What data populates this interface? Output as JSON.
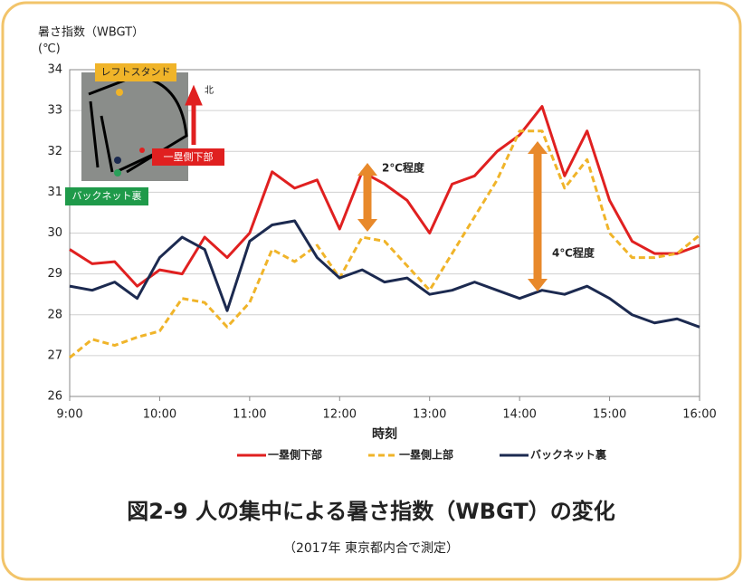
{
  "chart_data": {
    "type": "line",
    "y_label": "暑さ指数（WBGT）",
    "y_unit": "(℃)",
    "x_label": "時刻",
    "title": "図2-9  人の集中による暑さ指数（WBGT）の変化",
    "subtitle": "（2017年 東京都内合で測定）",
    "x": [
      9,
      9.25,
      9.5,
      9.75,
      10,
      10.25,
      10.5,
      10.75,
      11,
      11.25,
      11.5,
      11.75,
      12,
      12.25,
      12.5,
      12.75,
      13,
      13.25,
      13.5,
      13.75,
      14,
      14.25,
      14.5,
      14.75,
      15,
      15.25,
      15.5,
      15.75,
      16
    ],
    "xlim": [
      9,
      16
    ],
    "xticks": [
      {
        "value": 9,
        "label": "9:00"
      },
      {
        "value": 10,
        "label": "10:00"
      },
      {
        "value": 11,
        "label": "11:00"
      },
      {
        "value": 12,
        "label": "12:00"
      },
      {
        "value": 13,
        "label": "13:00"
      },
      {
        "value": 14,
        "label": "14:00"
      },
      {
        "value": 15,
        "label": "15:00"
      },
      {
        "value": 16,
        "label": "16:00"
      }
    ],
    "ylim": [
      26,
      34
    ],
    "yticks": [
      26,
      27,
      28,
      29,
      30,
      31,
      32,
      33,
      34
    ],
    "grid": true,
    "series": [
      {
        "name": "一塁側下部",
        "color": "#e02020",
        "dash": false,
        "values": [
          29.6,
          29.25,
          29.3,
          28.7,
          29.1,
          29.0,
          29.9,
          29.4,
          30.0,
          31.5,
          31.1,
          31.3,
          30.1,
          31.5,
          31.2,
          30.8,
          30.0,
          31.2,
          31.4,
          32.0,
          32.4,
          33.1,
          31.4,
          32.5,
          30.8,
          29.8,
          29.5,
          29.5,
          29.7
        ]
      },
      {
        "name": "一塁側上部",
        "color": "#f0b429",
        "dash": true,
        "values": [
          26.95,
          27.4,
          27.25,
          27.45,
          27.6,
          28.4,
          28.3,
          27.7,
          28.3,
          29.6,
          29.3,
          29.7,
          28.9,
          29.9,
          29.8,
          29.2,
          28.6,
          29.5,
          30.4,
          31.3,
          32.5,
          32.5,
          31.1,
          31.8,
          30.0,
          29.4,
          29.4,
          29.5,
          29.95
        ]
      },
      {
        "name": "バックネット裏",
        "color": "#1c2a50",
        "dash": false,
        "values": [
          28.7,
          28.6,
          28.8,
          28.4,
          29.4,
          29.9,
          29.6,
          28.1,
          29.8,
          30.2,
          30.3,
          29.4,
          28.9,
          29.1,
          28.8,
          28.9,
          28.5,
          28.6,
          28.8,
          28.6,
          28.4,
          28.6,
          28.5,
          28.7,
          28.4,
          28.0,
          27.8,
          27.9,
          27.7
        ]
      }
    ],
    "annotations": [
      "2℃程度",
      "4℃程度"
    ],
    "map_labels": [
      "レフトスタンド",
      "一塁側下部",
      "バックネット裏",
      "北"
    ]
  }
}
